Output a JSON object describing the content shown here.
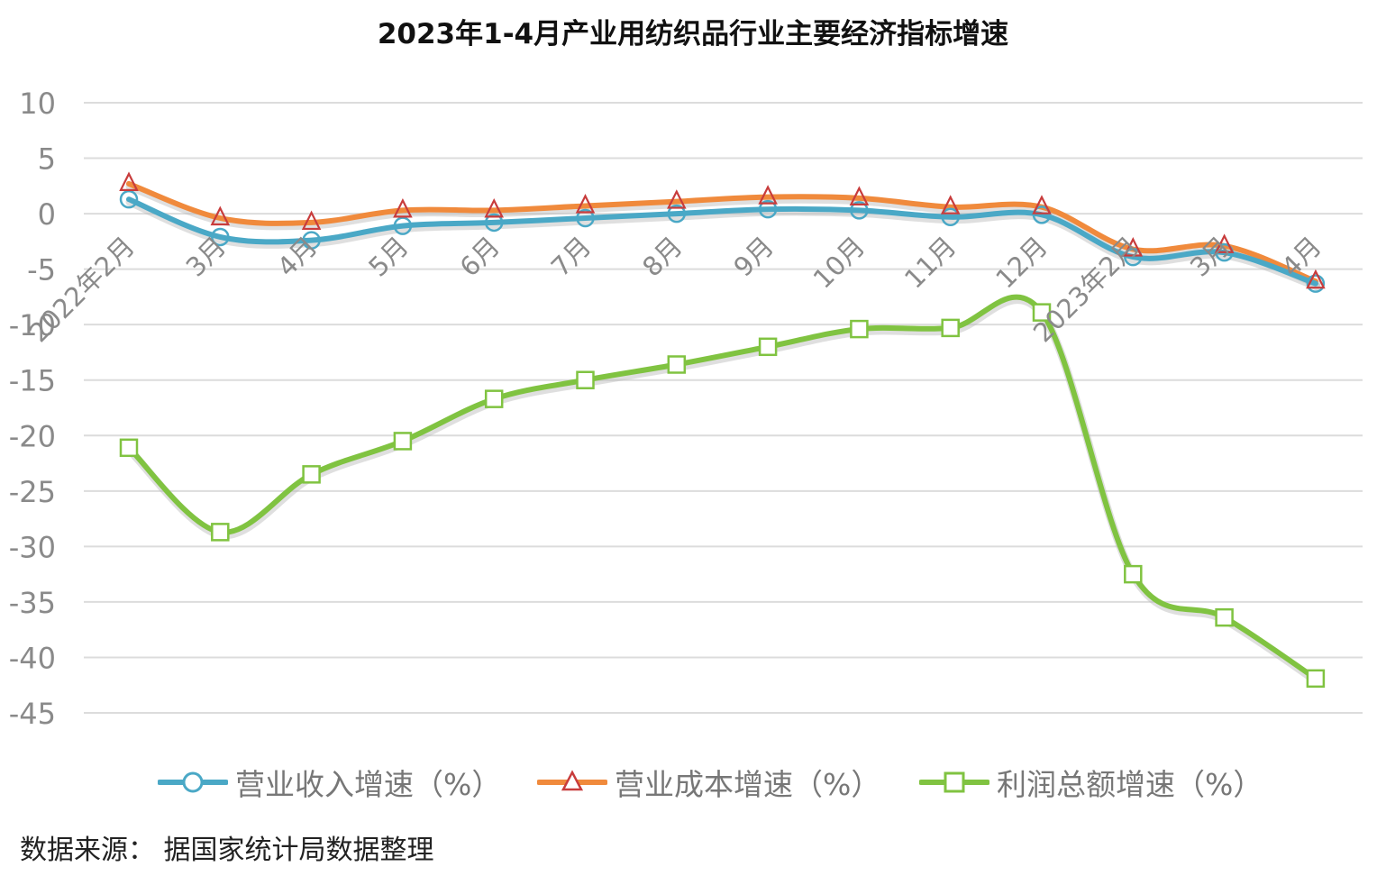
{
  "chart_data": {
    "type": "line",
    "title": "2023年1-4月产业用纺织品行业主要经济指标增速",
    "xlabel": "",
    "ylabel": "",
    "categories": [
      "2022年2月",
      "3月",
      "4月",
      "5月",
      "6月",
      "7月",
      "8月",
      "9月",
      "10月",
      "11月",
      "12月",
      "2023年2月",
      "3月",
      "4月"
    ],
    "ylim": [
      -45,
      10
    ],
    "yticks": [
      10,
      5,
      0,
      -5,
      -10,
      -15,
      -20,
      -25,
      -30,
      -35,
      -40,
      -45
    ],
    "grid": true,
    "legend_position": "bottom",
    "series": [
      {
        "name": "营业收入增速（%）",
        "color": "#4aa8c6",
        "marker": "circle",
        "values": [
          1.3,
          -2.1,
          -2.4,
          -1.1,
          -0.8,
          -0.4,
          0.0,
          0.4,
          0.3,
          -0.3,
          -0.1,
          -3.9,
          -3.5,
          -6.3
        ]
      },
      {
        "name": "营业成本增速（%）",
        "color": "#f08a3c",
        "marker": "triangle",
        "values": [
          2.7,
          -0.4,
          -0.8,
          0.3,
          0.3,
          0.7,
          1.1,
          1.5,
          1.4,
          0.6,
          0.6,
          -3.2,
          -2.9,
          -6.1
        ]
      },
      {
        "name": "利润总额增速（%）",
        "color": "#80c341",
        "marker": "square",
        "values": [
          -21.1,
          -28.7,
          -23.5,
          -20.5,
          -16.7,
          -15.0,
          -13.6,
          -12.0,
          -10.4,
          -10.3,
          -8.9,
          -32.5,
          -36.4,
          -41.9
        ]
      }
    ]
  },
  "source_note": "数据来源：  据国家统计局数据整理"
}
